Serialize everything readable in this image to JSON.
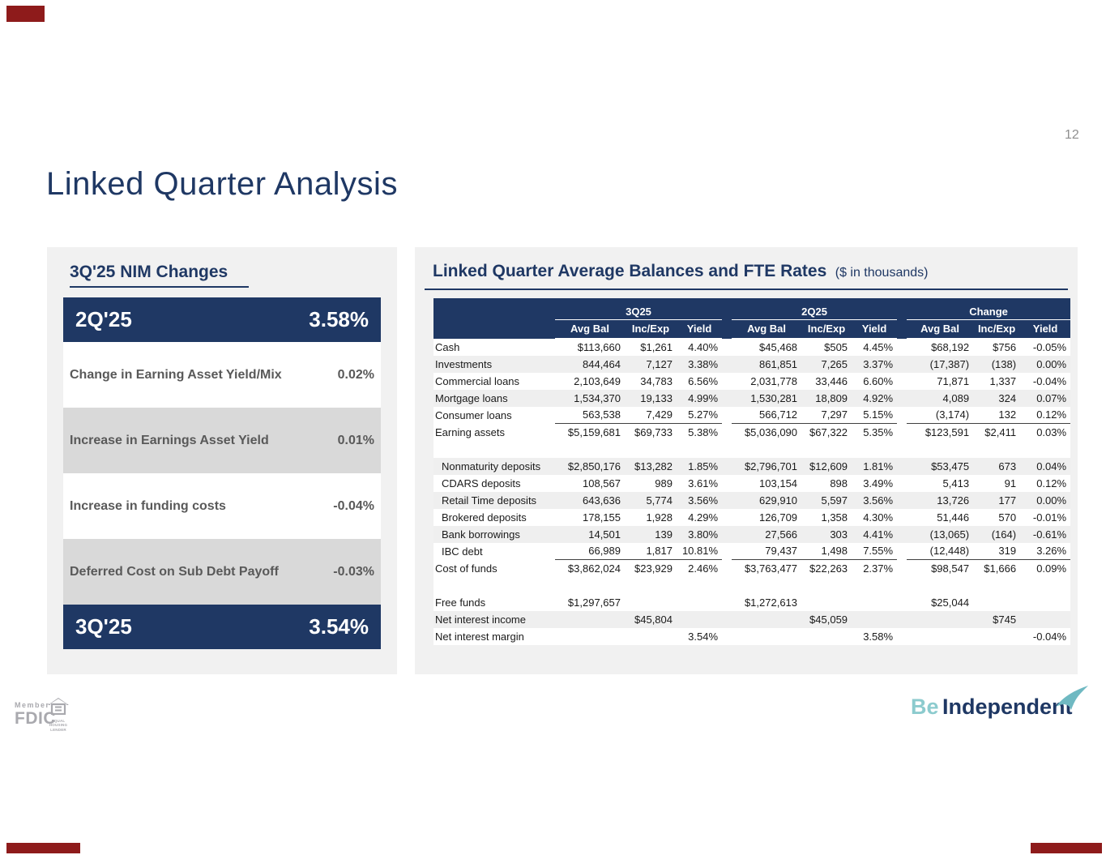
{
  "page_number": "12",
  "slide_title": "Linked Quarter Analysis",
  "nim_panel": {
    "heading": "3Q'25 NIM Changes",
    "rows": [
      {
        "label": "2Q'25",
        "value": "3.58%",
        "style": "navy"
      },
      {
        "label": "Change in Earning Asset Yield/Mix",
        "value": "0.02%",
        "style": "light"
      },
      {
        "label": "Increase in Earnings Asset Yield",
        "value": "0.01%",
        "style": "mid"
      },
      {
        "label": "Increase in funding costs",
        "value": "-0.04%",
        "style": "light"
      },
      {
        "label": "Deferred Cost on Sub Debt Payoff",
        "value": "-0.03%",
        "style": "mid"
      },
      {
        "label": "3Q'25",
        "value": "3.54%",
        "style": "navy"
      }
    ]
  },
  "balances_panel": {
    "heading": "Linked Quarter Average Balances and FTE Rates",
    "heading_note": "($ in thousands)",
    "column_groups": [
      "3Q25",
      "2Q25",
      "Change"
    ],
    "sub_columns": [
      "Avg Bal",
      "Inc/Exp",
      "Yield"
    ],
    "rows": [
      {
        "label": "Cash",
        "values": [
          "$113,660",
          "$1,261",
          "4.40%",
          "$45,468",
          "$505",
          "4.45%",
          "$68,192",
          "$756",
          "-0.05%"
        ]
      },
      {
        "label": "Investments",
        "shade": true,
        "values": [
          "844,464",
          "7,127",
          "3.38%",
          "861,851",
          "7,265",
          "3.37%",
          "(17,387)",
          "(138)",
          "0.00%"
        ]
      },
      {
        "label": "Commercial loans",
        "values": [
          "2,103,649",
          "34,783",
          "6.56%",
          "2,031,778",
          "33,446",
          "6.60%",
          "71,871",
          "1,337",
          "-0.04%"
        ]
      },
      {
        "label": "Mortgage loans",
        "shade": true,
        "values": [
          "1,534,370",
          "19,133",
          "4.99%",
          "1,530,281",
          "18,809",
          "4.92%",
          "4,089",
          "324",
          "0.07%"
        ]
      },
      {
        "label": "Consumer loans",
        "underline": true,
        "values": [
          "563,538",
          "7,429",
          "5.27%",
          "566,712",
          "7,297",
          "5.15%",
          "(3,174)",
          "132",
          "0.12%"
        ]
      },
      {
        "label": "Earning assets",
        "values": [
          "$5,159,681",
          "$69,733",
          "5.38%",
          "$5,036,090",
          "$67,322",
          "5.35%",
          "$123,591",
          "$2,411",
          "0.03%"
        ]
      },
      {
        "spacer": true
      },
      {
        "label": "Nonmaturity deposits",
        "indent": true,
        "shade": true,
        "values": [
          "$2,850,176",
          "$13,282",
          "1.85%",
          "$2,796,701",
          "$12,609",
          "1.81%",
          "$53,475",
          "673",
          "0.04%"
        ]
      },
      {
        "label": "CDARS deposits",
        "indent": true,
        "values": [
          "108,567",
          "989",
          "3.61%",
          "103,154",
          "898",
          "3.49%",
          "5,413",
          "91",
          "0.12%"
        ]
      },
      {
        "label": "Retail Time deposits",
        "indent": true,
        "shade": true,
        "values": [
          "643,636",
          "5,774",
          "3.56%",
          "629,910",
          "5,597",
          "3.56%",
          "13,726",
          "177",
          "0.00%"
        ]
      },
      {
        "label": "Brokered deposits",
        "indent": true,
        "values": [
          "178,155",
          "1,928",
          "4.29%",
          "126,709",
          "1,358",
          "4.30%",
          "51,446",
          "570",
          "-0.01%"
        ]
      },
      {
        "label": "Bank borrowings",
        "indent": true,
        "shade": true,
        "values": [
          "14,501",
          "139",
          "3.80%",
          "27,566",
          "303",
          "4.41%",
          "(13,065)",
          "(164)",
          "-0.61%"
        ]
      },
      {
        "label": "IBC debt",
        "indent": true,
        "underline": true,
        "values": [
          "66,989",
          "1,817",
          "10.81%",
          "79,437",
          "1,498",
          "7.55%",
          "(12,448)",
          "319",
          "3.26%"
        ]
      },
      {
        "label": "Cost of funds",
        "values": [
          "$3,862,024",
          "$23,929",
          "2.46%",
          "$3,763,477",
          "$22,263",
          "2.37%",
          "$98,547",
          "$1,666",
          "0.09%"
        ]
      },
      {
        "spacer": true
      },
      {
        "label": "Free funds",
        "values": [
          "$1,297,657",
          "",
          "",
          "$1,272,613",
          "",
          "",
          "$25,044",
          "",
          ""
        ]
      },
      {
        "label": "Net interest income",
        "shade": true,
        "values": [
          "",
          "$45,804",
          "",
          "",
          "$45,059",
          "",
          "",
          "$745",
          ""
        ]
      },
      {
        "label": "Net interest margin",
        "values": [
          "",
          "",
          "3.54%",
          "",
          "",
          "3.58%",
          "",
          "",
          "-0.04%"
        ]
      }
    ]
  },
  "footer": {
    "member_label": "Member",
    "fdic_label": "FDIC",
    "ehl_line1": "EQUAL HOUSING",
    "ehl_line2": "LENDER",
    "brand_be": "Be",
    "brand_independent": "Independent"
  },
  "colors": {
    "navy": "#1F3864",
    "teal": "#8CCBCE",
    "bird_teal": "#6FB9C2",
    "panel_gray": "#F1F1F1",
    "row_gray": "#D9D9D9",
    "stripe": "#EFEFEF",
    "muted_text": "#595959",
    "redaction_red": "#8E1B1B"
  }
}
